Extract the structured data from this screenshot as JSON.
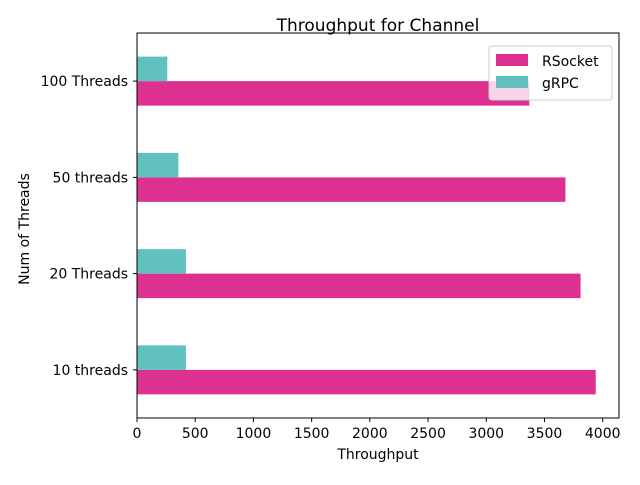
{
  "chart_data": {
    "type": "bar",
    "orientation": "horizontal",
    "title": "Throughput for Channel",
    "xlabel": "Throughput",
    "ylabel": "Num of Threads",
    "categories": [
      "10 threads",
      "20 Threads",
      "50 threads",
      "100 Threads"
    ],
    "series": [
      {
        "name": "RSocket",
        "color": "#dd3192",
        "values": [
          3940,
          3810,
          3680,
          3370
        ]
      },
      {
        "name": "gRPC",
        "color": "#62c0bf",
        "values": [
          420,
          420,
          355,
          260
        ]
      }
    ],
    "xlim": [
      0,
      4140
    ],
    "xticks": [
      0,
      500,
      1000,
      1500,
      2000,
      2500,
      3000,
      3500,
      4000
    ],
    "grid": false,
    "legend_position": "top-right"
  }
}
